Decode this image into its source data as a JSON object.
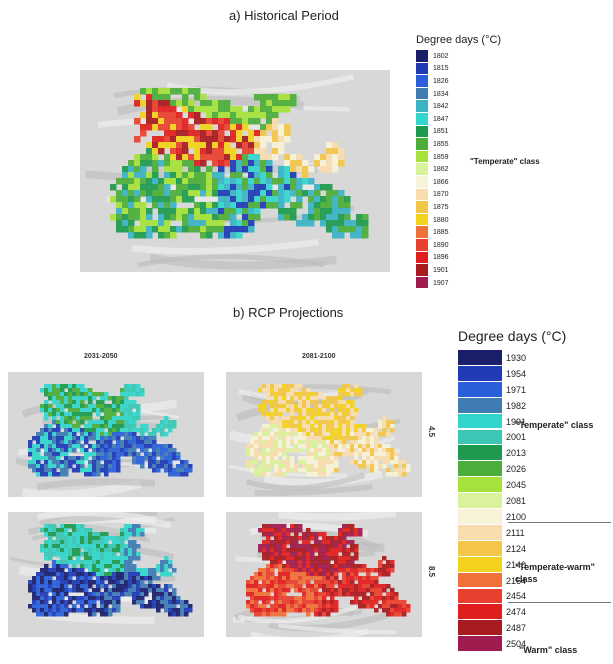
{
  "historical": {
    "title": "a) Historical Period",
    "legend": {
      "title": "Degree days (°C)",
      "entries": [
        {
          "label": "1802",
          "color": "#1a1f6b"
        },
        {
          "label": "1815",
          "color": "#1f3bb5"
        },
        {
          "label": "1826",
          "color": "#2a5fd9"
        },
        {
          "label": "1834",
          "color": "#3f7cb3"
        },
        {
          "label": "1842",
          "color": "#3bb3c4"
        },
        {
          "label": "1847",
          "color": "#33d6cc"
        },
        {
          "label": "1851",
          "color": "#1e9a4e"
        },
        {
          "label": "1855",
          "color": "#4cae3a"
        },
        {
          "label": "1859",
          "color": "#a5e23b"
        },
        {
          "label": "1862",
          "color": "#d9f29b"
        },
        {
          "label": "1866",
          "color": "#f7f3d8"
        },
        {
          "label": "1870",
          "color": "#f8dcae"
        },
        {
          "label": "1875",
          "color": "#f3c64a"
        },
        {
          "label": "1880",
          "color": "#f2d21c"
        },
        {
          "label": "1885",
          "color": "#f0713a"
        },
        {
          "label": "1890",
          "color": "#e8412f"
        },
        {
          "label": "1896",
          "color": "#e02020"
        },
        {
          "label": "1901",
          "color": "#a81b1f"
        },
        {
          "label": "1907",
          "color": "#a01c4e"
        }
      ]
    },
    "class_label": "\"Temperate\" class"
  },
  "projections": {
    "title": "b) RCP Projections",
    "col_labels": [
      "2031-2050",
      "2081-2100"
    ],
    "row_labels": [
      "4.5",
      "8.5"
    ],
    "legend": {
      "title": "Degree days (°C)",
      "entries": [
        {
          "label": "1930",
          "color": "#1a1f6b"
        },
        {
          "label": "1954",
          "color": "#1f3bb5"
        },
        {
          "label": "1971",
          "color": "#2a5fd9"
        },
        {
          "label": "1982",
          "color": "#3f7cb3"
        },
        {
          "label": "1991",
          "color": "#33d6cc"
        },
        {
          "label": "2001",
          "color": "#3bc7b4"
        },
        {
          "label": "2013",
          "color": "#1e9a4e"
        },
        {
          "label": "2026",
          "color": "#4cae3a"
        },
        {
          "label": "2045",
          "color": "#a5e23b"
        },
        {
          "label": "2081",
          "color": "#d9f29b"
        },
        {
          "label": "2100",
          "color": "#f7f3d8"
        },
        {
          "label": "2111",
          "color": "#f8dcae"
        },
        {
          "label": "2124",
          "color": "#f3c64a"
        },
        {
          "label": "2140",
          "color": "#f2d21c"
        },
        {
          "label": "2164",
          "color": "#f0713a"
        },
        {
          "label": "2454",
          "color": "#e8412f"
        },
        {
          "label": "2474",
          "color": "#e02020"
        },
        {
          "label": "2487",
          "color": "#a81b1f"
        },
        {
          "label": "2504",
          "color": "#a01c4e"
        }
      ]
    },
    "class_labels": [
      "\"Temperate\" class",
      "\"Temperate-warm\" class",
      "\"Warm\" class"
    ]
  }
}
